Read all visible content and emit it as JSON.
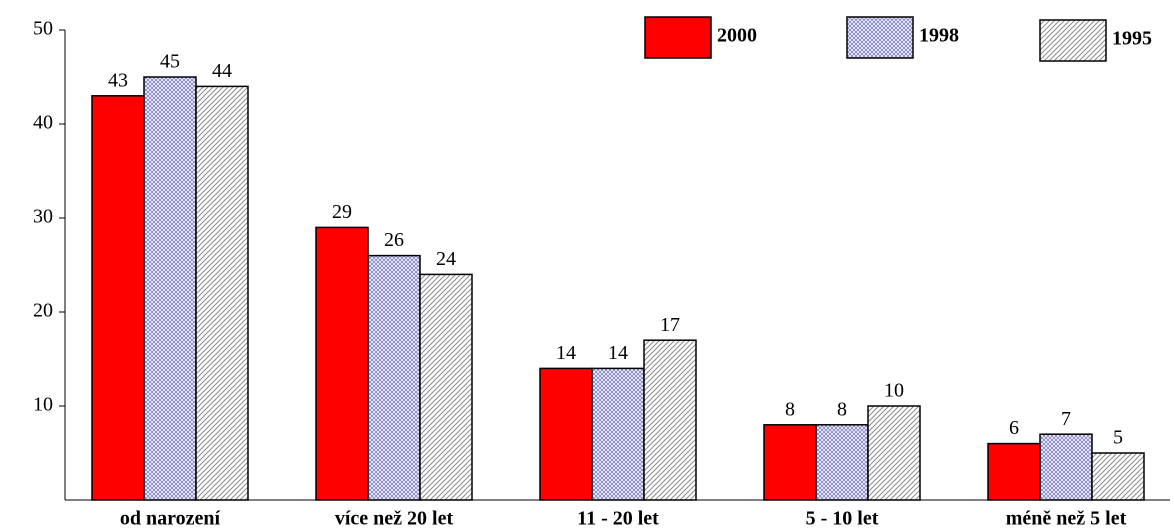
{
  "chart_data": {
    "type": "bar",
    "categories": [
      "od narození",
      "více než 20 let",
      "11 - 20 let",
      "5 - 10 let",
      "méně než 5 let"
    ],
    "series": [
      {
        "name": "2000",
        "color": "#ff0000",
        "values": [
          43,
          29,
          14,
          8,
          6
        ]
      },
      {
        "name": "1998",
        "color": "#8c8cc8",
        "values": [
          45,
          26,
          14,
          8,
          7
        ]
      },
      {
        "name": "1995",
        "color": "#8c8c8c",
        "values": [
          44,
          24,
          17,
          10,
          5
        ]
      }
    ],
    "ylim": [
      0,
      50
    ],
    "yticks": [
      10,
      20,
      30,
      40,
      50
    ],
    "grid": false
  }
}
